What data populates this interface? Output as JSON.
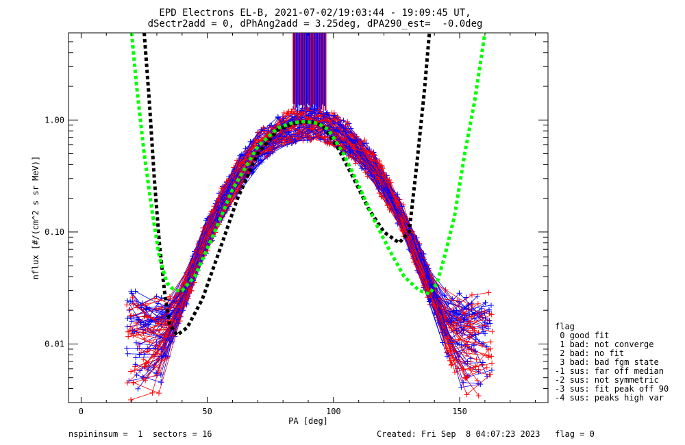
{
  "title_line1": "EPD Electrons EL-B, 2021-07-02/19:03:44 - 19:09:45 UT,",
  "title_line2": "dSectr2add = 0, dPhAng2add = 3.25deg, dPA290_est=  -0.0deg",
  "footer_left": "nspininsum =  1  sectors = 16",
  "footer_right": "Created: Fri Sep  8 04:07:23 2023   flag = 0",
  "legend": {
    "title": "flag",
    "items": [
      " 0 good fit",
      " 1 bad: not converge",
      " 2 bad: no fit",
      " 3 bad: bad fgm state",
      "-1 sus: far off median",
      "-2 sus: not symmetric",
      "-3 sus: fit peak off 90",
      "-4 sus: peaks high var"
    ]
  },
  "chart_data": {
    "type": "line",
    "xlabel": "PA [deg]",
    "ylabel": "nflux [#/(cm^2 s sr MeV)]",
    "xlim": [
      -5,
      185
    ],
    "ylim": [
      0.003,
      6
    ],
    "ylog": true,
    "xticks": [
      0,
      50,
      100,
      150
    ],
    "yticks": [
      {
        "value": 0.01,
        "label": "0.01"
      },
      {
        "value": 0.1,
        "label": "0.10"
      },
      {
        "value": 1.0,
        "label": "1.00"
      }
    ],
    "colors": {
      "red": "#ff0000",
      "blue": "#0000ff",
      "black": "#000000",
      "green": "#00ff00"
    },
    "series": [
      {
        "color": "black",
        "style": "dotted-thick",
        "x": [
          25,
          27,
          29,
          31,
          33,
          35,
          38,
          42,
          48,
          55,
          62,
          70,
          78,
          84,
          88,
          92,
          96,
          102,
          108,
          114,
          120,
          126,
          130,
          133,
          136,
          138
        ],
        "y": [
          6.0,
          1.5,
          0.3,
          0.08,
          0.03,
          0.015,
          0.012,
          0.014,
          0.025,
          0.07,
          0.2,
          0.5,
          0.82,
          0.93,
          0.96,
          0.95,
          0.88,
          0.55,
          0.3,
          0.16,
          0.1,
          0.08,
          0.1,
          0.4,
          1.8,
          6.0
        ]
      },
      {
        "color": "green",
        "style": "dotted-thick",
        "x": [
          20,
          22,
          25,
          28,
          31,
          34,
          37,
          40,
          45,
          52,
          60,
          70,
          78,
          84,
          89,
          94,
          98,
          104,
          110,
          116,
          122,
          128,
          134,
          138,
          141,
          144,
          148,
          152,
          156,
          160
        ],
        "y": [
          6.0,
          2.0,
          0.5,
          0.16,
          0.06,
          0.035,
          0.03,
          0.03,
          0.04,
          0.09,
          0.24,
          0.58,
          0.85,
          0.95,
          0.97,
          0.93,
          0.82,
          0.5,
          0.26,
          0.13,
          0.07,
          0.04,
          0.03,
          0.028,
          0.035,
          0.06,
          0.14,
          0.5,
          1.5,
          6.0
        ]
      }
    ]
  }
}
